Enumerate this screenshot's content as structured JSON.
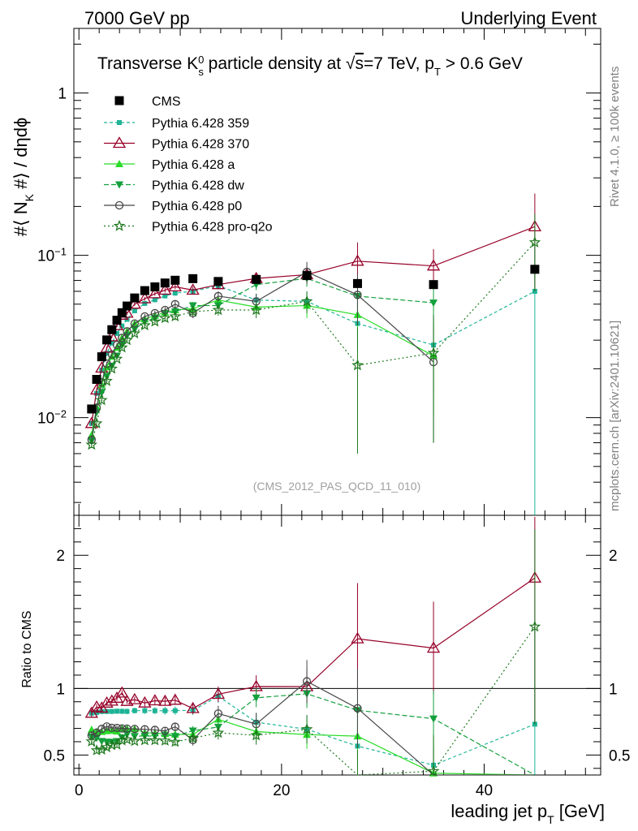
{
  "header": {
    "left": "7000 GeV pp",
    "right": "Underlying Event"
  },
  "side_labels": {
    "rivet": "Rivet 4.1.0, ≥ 100k events",
    "mcplots": "mcplots.cern.ch [arXiv:2401.10621]"
  },
  "reference": "(CMS_2012_PAS_QCD_11_010)",
  "chart_data": {
    "type": "scatter",
    "title_parts": {
      "pre": "Transverse K",
      "sup": "0",
      "sub": "s",
      "mid": " particle density at ",
      "sqrt": "√",
      "s": "s",
      "energy": "=7 TeV, p",
      "pt_sub": "T",
      "cut": " > 0.6 GeV"
    },
    "ylabel": "#⟨ N_K #⟩ / dηdϕ",
    "ylabel_parts": {
      "a": "#",
      "b": "⟨ N",
      "c": "K",
      "d": " #⟩ / dηdϕ"
    },
    "ratio_label": "Ratio to CMS",
    "xlabel_parts": {
      "a": "leading jet p",
      "sub": "T",
      "b": " [GeV]"
    },
    "xlim": [
      -0.5,
      51.5
    ],
    "ylim_log": [
      0.0025,
      2.5
    ],
    "ratio_ylim": [
      0.35,
      2.3
    ],
    "x_ticks": [
      {
        "v": 0,
        "label": "0"
      },
      {
        "v": 20,
        "label": "20"
      },
      {
        "v": 40,
        "label": "40"
      }
    ],
    "y_ticks": [
      {
        "exp": -2,
        "label_base": "10",
        "label_exp": "−2"
      },
      {
        "exp": -1,
        "label_base": "10",
        "label_exp": "−1"
      },
      {
        "exp": 0,
        "label_base": "1",
        "label_exp": ""
      }
    ],
    "ratio_ticks": [
      {
        "v": 0.5,
        "label": "0.5"
      },
      {
        "v": 1,
        "label": "1"
      },
      {
        "v": 2,
        "label": "2"
      }
    ],
    "x": [
      1.25,
      1.75,
      2.25,
      2.75,
      3.25,
      3.75,
      4.25,
      4.75,
      5.5,
      6.5,
      7.5,
      8.5,
      9.5,
      11.25,
      13.75,
      17.5,
      22.5,
      27.5,
      35,
      45
    ],
    "cms": [
      0.0113,
      0.0172,
      0.0237,
      0.0301,
      0.0348,
      0.0398,
      0.0443,
      0.0487,
      0.0546,
      0.0606,
      0.0639,
      0.0675,
      0.0702,
      0.0718,
      0.069,
      0.071,
      0.075,
      0.067,
      0.066,
      0.082
    ],
    "series": [
      {
        "name": "Pythia 6.428 359",
        "color": "#1eb496",
        "marker": "square-small",
        "dash": "4,3",
        "values": [
          0.0092,
          0.0141,
          0.0196,
          0.0249,
          0.0288,
          0.033,
          0.0367,
          0.0403,
          0.0455,
          0.0505,
          0.0532,
          0.0562,
          0.0585,
          0.06,
          0.065,
          0.053,
          0.052,
          0.038,
          0.028,
          0.06
        ],
        "err": [
          0.0003,
          0.0004,
          0.0005,
          0.0006,
          0.0007,
          0.0008,
          0.0009,
          0.001,
          0.0012,
          0.0015,
          0.0017,
          0.002,
          0.0022,
          0.0025,
          0.0035,
          0.005,
          0.008,
          0.012,
          0.014,
          0.06
        ]
      },
      {
        "name": "Pythia 6.428 370",
        "color": "#960028",
        "marker": "triangle-open",
        "dash": "",
        "values": [
          0.0092,
          0.0148,
          0.0202,
          0.0268,
          0.0315,
          0.0369,
          0.0428,
          0.044,
          0.05,
          0.054,
          0.058,
          0.061,
          0.064,
          0.061,
          0.066,
          0.072,
          0.076,
          0.092,
          0.086,
          0.15
        ],
        "err": [
          0.0003,
          0.0004,
          0.0005,
          0.0006,
          0.0007,
          0.0008,
          0.0009,
          0.001,
          0.0012,
          0.0015,
          0.0017,
          0.002,
          0.0022,
          0.003,
          0.004,
          0.006,
          0.01,
          0.028,
          0.023,
          0.09
        ]
      },
      {
        "name": "Pythia 6.428 a",
        "color": "#28dc28",
        "marker": "triangle-filled",
        "dash": "",
        "values": [
          0.0078,
          0.0116,
          0.016,
          0.0205,
          0.0238,
          0.027,
          0.031,
          0.034,
          0.038,
          0.0405,
          0.0425,
          0.0445,
          0.046,
          0.047,
          0.053,
          0.048,
          0.049,
          0.043,
          0.024,
          0.0
        ],
        "err": [
          0.0003,
          0.0004,
          0.0005,
          0.0006,
          0.0007,
          0.0008,
          0.0009,
          0.001,
          0.0012,
          0.0015,
          0.0017,
          0.002,
          0.0022,
          0.0025,
          0.0035,
          0.005,
          0.008,
          0.012,
          0.014,
          0.0
        ]
      },
      {
        "name": "Pythia 6.428 dw",
        "color": "#14a03c",
        "marker": "triangle-down",
        "dash": "6,3",
        "values": [
          0.0072,
          0.0108,
          0.0143,
          0.018,
          0.0208,
          0.024,
          0.028,
          0.032,
          0.035,
          0.039,
          0.041,
          0.044,
          0.045,
          0.049,
          0.049,
          0.066,
          0.072,
          0.056,
          0.051,
          0.0
        ],
        "err": [
          0.0003,
          0.0004,
          0.0005,
          0.0006,
          0.0007,
          0.0008,
          0.0009,
          0.001,
          0.0012,
          0.0015,
          0.0017,
          0.002,
          0.0022,
          0.0025,
          0.0035,
          0.005,
          0.008,
          0.012,
          0.014,
          0.0
        ]
      },
      {
        "name": "Pythia 6.428 p0",
        "color": "#464646",
        "marker": "circle-open",
        "dash": "",
        "values": [
          0.0073,
          0.0115,
          0.0165,
          0.0215,
          0.0245,
          0.028,
          0.031,
          0.034,
          0.038,
          0.042,
          0.044,
          0.046,
          0.05,
          0.044,
          0.056,
          0.052,
          0.079,
          0.057,
          0.022,
          0.0
        ],
        "err": [
          0.0003,
          0.0004,
          0.0005,
          0.0006,
          0.0007,
          0.0008,
          0.0009,
          0.001,
          0.0012,
          0.0015,
          0.0017,
          0.002,
          0.0022,
          0.003,
          0.004,
          0.006,
          0.012,
          0.02,
          0.015,
          0.0
        ]
      },
      {
        "name": "Pythia 6.428 pro-q2o",
        "color": "#1e781e",
        "marker": "star",
        "dash": "2,3",
        "values": [
          0.0068,
          0.0092,
          0.0128,
          0.0168,
          0.02,
          0.023,
          0.027,
          0.03,
          0.033,
          0.037,
          0.039,
          0.041,
          0.042,
          0.045,
          0.046,
          0.046,
          0.052,
          0.021,
          0.025,
          0.12
        ],
        "err": [
          0.0003,
          0.0004,
          0.0005,
          0.0006,
          0.0007,
          0.0008,
          0.0009,
          0.001,
          0.0012,
          0.0015,
          0.0017,
          0.002,
          0.0022,
          0.0025,
          0.0035,
          0.005,
          0.008,
          0.015,
          0.018,
          0.06
        ]
      }
    ],
    "cms_legend": "CMS"
  }
}
